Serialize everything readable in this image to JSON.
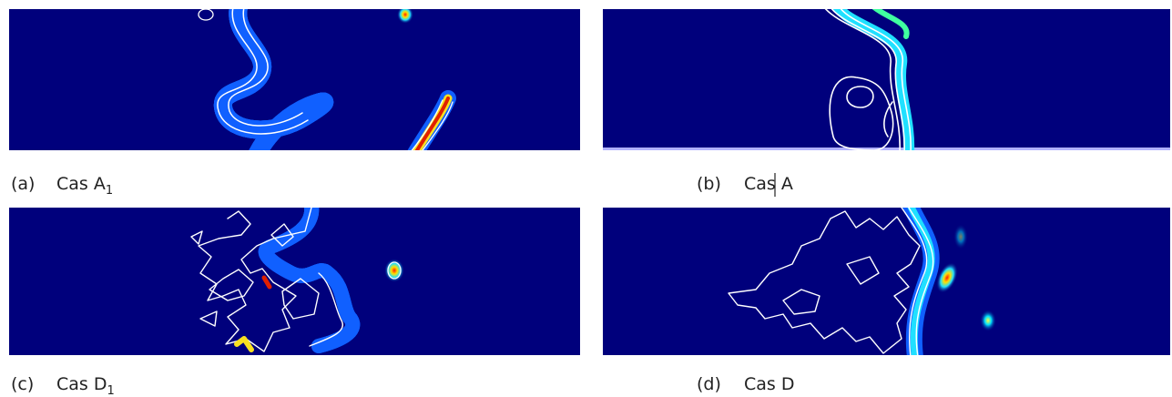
{
  "panels": [
    {
      "tag": "(a)",
      "caption": "Cas A",
      "subscript": "1"
    },
    {
      "tag": "(b)",
      "caption": "Cas A"
    },
    {
      "tag": "(c)",
      "caption": "Cas D",
      "subscript": "1"
    },
    {
      "tag": "(d)",
      "caption": "Cas D"
    }
  ]
}
